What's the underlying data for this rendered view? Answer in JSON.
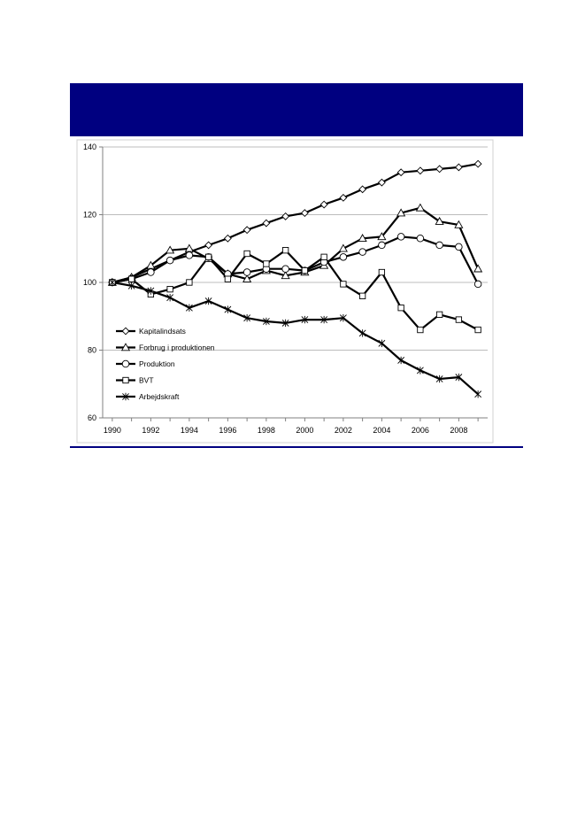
{
  "colors": {
    "banner": "#000080",
    "rule": "#000080",
    "series": "#000000",
    "grid": "#a6a6a6"
  },
  "chart_data": {
    "type": "line",
    "title": "",
    "xlabel": "",
    "ylabel": "",
    "x": [
      1990,
      1991,
      1992,
      1993,
      1994,
      1995,
      1996,
      1997,
      1998,
      1999,
      2000,
      2001,
      2002,
      2003,
      2004,
      2005,
      2006,
      2007,
      2008,
      2009
    ],
    "xticks": [
      "1990",
      "1992",
      "1994",
      "1996",
      "1998",
      "2000",
      "2002",
      "2004",
      "2006",
      "2008"
    ],
    "xlim": [
      1989.5,
      2009.5
    ],
    "yticks": [
      "60",
      "80",
      "100",
      "120",
      "140"
    ],
    "ylim": [
      60,
      140
    ],
    "grid": "horizontal",
    "legend_position": "bottom-left",
    "series": [
      {
        "name": "Kapitalindsats",
        "marker": "diamond",
        "values": [
          100,
          101.5,
          104,
          106.5,
          109,
          111,
          113,
          115.5,
          117.5,
          119.5,
          120.5,
          123,
          125,
          127.5,
          129.5,
          132.5,
          133,
          133.5,
          134,
          135
        ]
      },
      {
        "name": "Forbrug i produktionen",
        "marker": "triangle",
        "values": [
          100,
          101.5,
          105,
          109.5,
          110,
          107,
          102.5,
          101,
          103.5,
          102,
          103,
          105,
          110,
          113,
          113.5,
          120.5,
          122,
          118,
          117,
          104
        ]
      },
      {
        "name": "Produktion",
        "marker": "circle",
        "values": [
          100,
          101,
          103,
          106.5,
          108,
          107.5,
          102.5,
          103,
          104,
          104,
          103.5,
          106,
          107.5,
          109,
          111,
          113.5,
          113,
          111,
          110.5,
          99.5
        ]
      },
      {
        "name": "BVT",
        "marker": "square",
        "values": [
          100,
          101,
          96.5,
          98,
          100,
          107.5,
          101,
          108.5,
          105.5,
          109.5,
          103.5,
          107.5,
          99.5,
          96,
          103,
          92.5,
          86,
          90.5,
          89,
          86
        ]
      },
      {
        "name": "Arbejdskraft",
        "marker": "star",
        "values": [
          100,
          99,
          97.5,
          95.5,
          92.5,
          94.5,
          92,
          89.5,
          88.5,
          88,
          89,
          89,
          89.5,
          85,
          82,
          77,
          74,
          71.5,
          72,
          67
        ]
      }
    ]
  }
}
